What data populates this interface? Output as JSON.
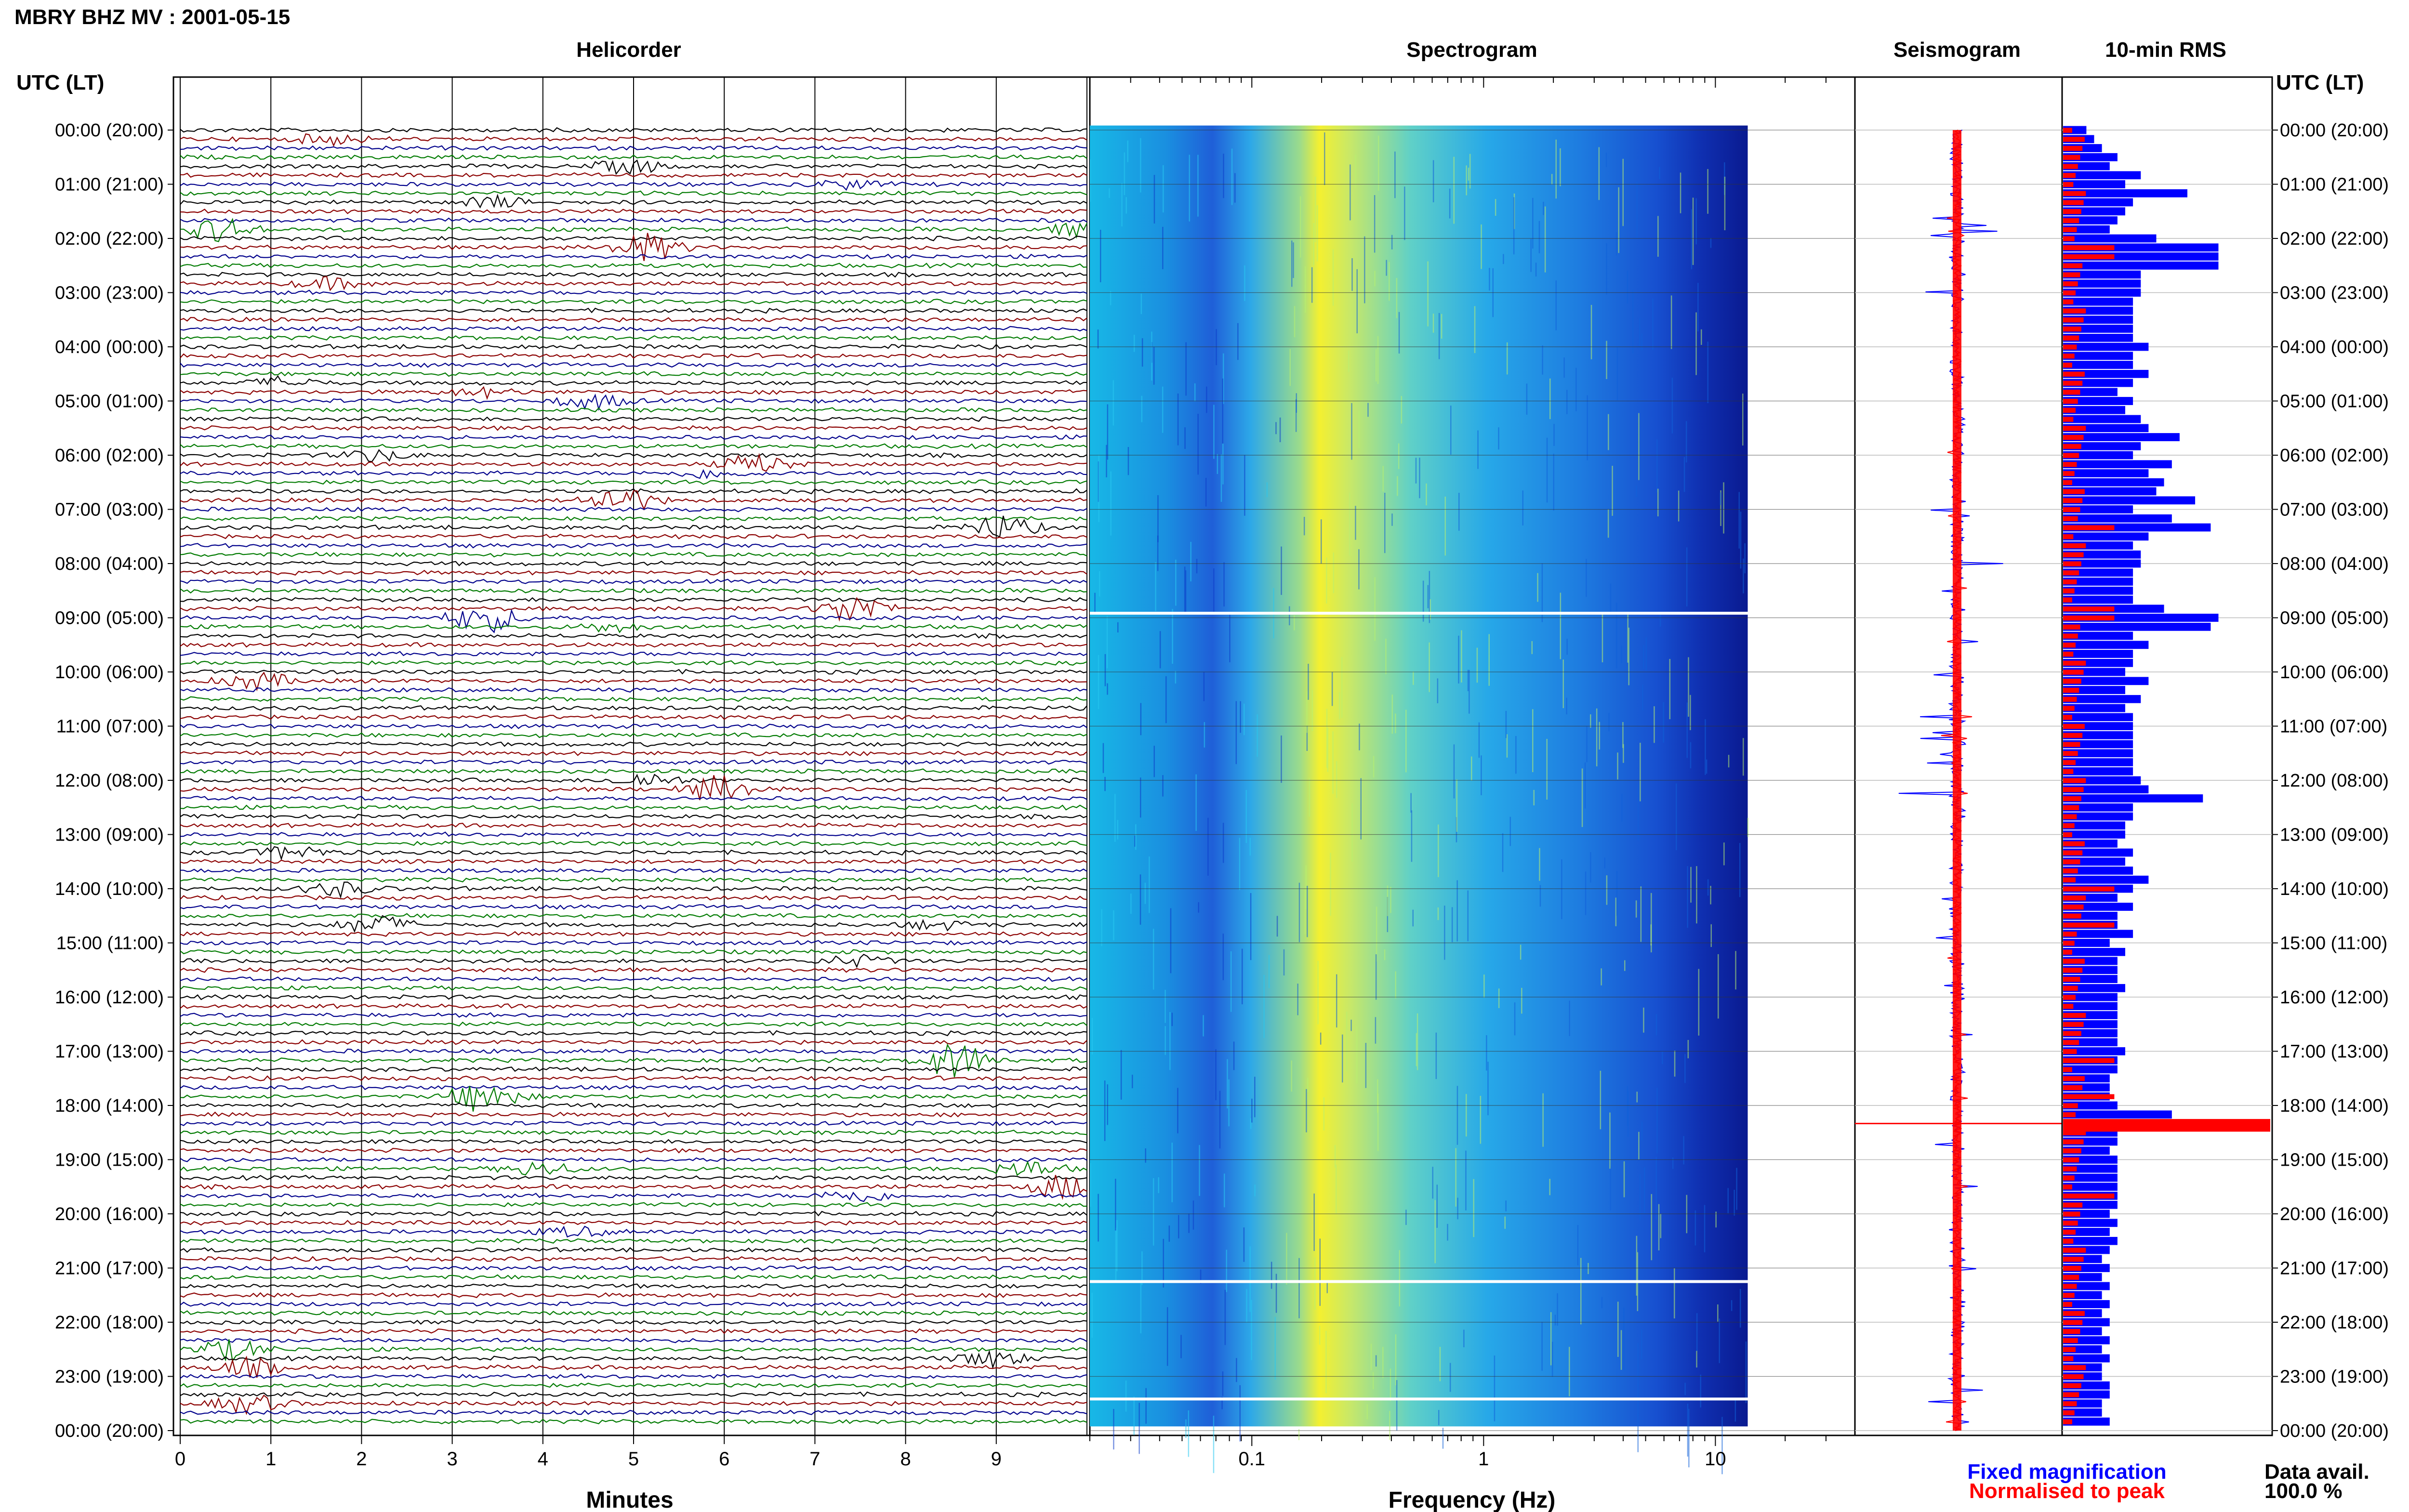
{
  "header": {
    "title": "MBRY BHZ MV : 2001-05-15",
    "utc_label_left": "UTC (LT)",
    "utc_label_right": "UTC (LT)"
  },
  "panels": {
    "helicorder": "Helicorder",
    "spectrogram": "Spectrogram",
    "seismogram": "Seismogram",
    "rms": "10-min RMS"
  },
  "colors": {
    "trace_cycle": [
      "#000000",
      "#8b0000",
      "#00008b",
      "#007a00"
    ],
    "fixed": "#0000ff",
    "normalised": "#ff0000"
  },
  "chart_data": {
    "type": "heatmap",
    "time_labels": [
      "00:00 (20:00)",
      "01:00 (21:00)",
      "02:00 (22:00)",
      "03:00 (23:00)",
      "04:00 (00:00)",
      "05:00 (01:00)",
      "06:00 (02:00)",
      "07:00 (03:00)",
      "08:00 (04:00)",
      "09:00 (05:00)",
      "10:00 (06:00)",
      "11:00 (07:00)",
      "12:00 (08:00)",
      "13:00 (09:00)",
      "14:00 (10:00)",
      "15:00 (11:00)",
      "16:00 (12:00)",
      "17:00 (13:00)",
      "18:00 (14:00)",
      "19:00 (15:00)",
      "20:00 (16:00)",
      "21:00 (17:00)",
      "22:00 (18:00)",
      "23:00 (19:00)",
      "00:00 (20:00)"
    ],
    "helicorder": {
      "xlabel": "Minutes",
      "xticks": [
        "0",
        "1",
        "2",
        "3",
        "4",
        "5",
        "6",
        "7",
        "8",
        "9"
      ],
      "xlim": [
        0,
        10
      ],
      "rows": 144,
      "events": [
        {
          "row": 1,
          "minute": 1.5,
          "amp": 1.2
        },
        {
          "row": 4,
          "minute": 4.8,
          "amp": 1.5
        },
        {
          "row": 6,
          "minute": 7.2,
          "amp": 1.0
        },
        {
          "row": 8,
          "minute": 3.3,
          "amp": 1.3
        },
        {
          "row": 11,
          "minute": 0.3,
          "amp": 2.5
        },
        {
          "row": 11,
          "minute": 9.8,
          "amp": 1.5
        },
        {
          "row": 13,
          "minute": 5.0,
          "amp": 3.0
        },
        {
          "row": 17,
          "minute": 1.5,
          "amp": 1.2
        },
        {
          "row": 28,
          "minute": 1.0,
          "amp": 1.2
        },
        {
          "row": 29,
          "minute": 3.2,
          "amp": 1.0
        },
        {
          "row": 30,
          "minute": 4.4,
          "amp": 1.6
        },
        {
          "row": 36,
          "minute": 2.0,
          "amp": 1.3
        },
        {
          "row": 37,
          "minute": 6.2,
          "amp": 2.0
        },
        {
          "row": 38,
          "minute": 5.7,
          "amp": 1.0
        },
        {
          "row": 41,
          "minute": 4.7,
          "amp": 3.0
        },
        {
          "row": 44,
          "minute": 8.9,
          "amp": 2.6
        },
        {
          "row": 53,
          "minute": 7.3,
          "amp": 3.2
        },
        {
          "row": 54,
          "minute": 3.2,
          "amp": 3.2
        },
        {
          "row": 55,
          "minute": 4.6,
          "amp": 1.0
        },
        {
          "row": 61,
          "minute": 0.7,
          "amp": 1.8
        },
        {
          "row": 72,
          "minute": 5.0,
          "amp": 1.5
        },
        {
          "row": 73,
          "minute": 5.8,
          "amp": 3.0
        },
        {
          "row": 80,
          "minute": 1.1,
          "amp": 1.5
        },
        {
          "row": 84,
          "minute": 1.6,
          "amp": 1.5
        },
        {
          "row": 88,
          "minute": 2.0,
          "amp": 2.0
        },
        {
          "row": 88,
          "minute": 8.2,
          "amp": 1.0
        },
        {
          "row": 92,
          "minute": 7.3,
          "amp": 1.2
        },
        {
          "row": 103,
          "minute": 8.4,
          "amp": 4.0
        },
        {
          "row": 107,
          "minute": 3.2,
          "amp": 3.5
        },
        {
          "row": 115,
          "minute": 3.8,
          "amp": 1.5
        },
        {
          "row": 115,
          "minute": 9.2,
          "amp": 1.7
        },
        {
          "row": 117,
          "minute": 9.6,
          "amp": 2.6
        },
        {
          "row": 118,
          "minute": 7.3,
          "amp": 1.4
        },
        {
          "row": 122,
          "minute": 4.2,
          "amp": 1.0
        },
        {
          "row": 135,
          "minute": 0.4,
          "amp": 2.2
        },
        {
          "row": 137,
          "minute": 0.6,
          "amp": 2.0
        },
        {
          "row": 136,
          "minute": 8.8,
          "amp": 1.8
        },
        {
          "row": 141,
          "minute": 0.6,
          "amp": 2.0
        }
      ]
    },
    "spectrogram": {
      "xlabel": "Frequency (Hz)",
      "xscale": "log",
      "xlim": [
        0.02,
        40
      ],
      "xticks": [
        "0.1",
        "1",
        "10"
      ],
      "colormap": "jet"
    },
    "seismogram": {
      "legend_fixed": "Fixed magnification",
      "legend_normalised": "Normalised to peak"
    },
    "rms": {
      "data_avail_label": "Data avail.",
      "data_avail_value": "100.0 %",
      "fixed": [
        0.15,
        0.2,
        0.25,
        0.35,
        0.3,
        0.5,
        0.4,
        0.8,
        0.45,
        0.4,
        0.35,
        0.3,
        0.6,
        1.1,
        1.0,
        1.2,
        0.5,
        0.5,
        0.5,
        0.45,
        0.45,
        0.45,
        0.45,
        0.45,
        0.55,
        0.45,
        0.45,
        0.55,
        0.45,
        0.35,
        0.45,
        0.4,
        0.5,
        0.55,
        0.75,
        0.5,
        0.45,
        0.7,
        0.55,
        0.65,
        0.6,
        0.85,
        0.45,
        0.7,
        0.95,
        0.55,
        0.45,
        0.5,
        0.5,
        0.45,
        0.45,
        0.45,
        0.45,
        0.65,
        1.0,
        0.95,
        0.45,
        0.55,
        0.45,
        0.45,
        0.4,
        0.55,
        0.4,
        0.5,
        0.4,
        0.45,
        0.45,
        0.45,
        0.45,
        0.45,
        0.45,
        0.45,
        0.5,
        0.55,
        0.9,
        0.45,
        0.45,
        0.4,
        0.4,
        0.35,
        0.45,
        0.4,
        0.45,
        0.55,
        0.45,
        0.35,
        0.45,
        0.35,
        0.35,
        0.45,
        0.3,
        0.4,
        0.35,
        0.35,
        0.35,
        0.4,
        0.35,
        0.35,
        0.35,
        0.35,
        0.35,
        0.35,
        0.4,
        0.35,
        0.35,
        0.3,
        0.3,
        0.3,
        0.35,
        0.7,
        0.4,
        0.35,
        0.35,
        0.3,
        0.35,
        0.35,
        0.35,
        0.35,
        0.35,
        0.35,
        0.3,
        0.35,
        0.3,
        0.35,
        0.3,
        0.25,
        0.3,
        0.25,
        0.3,
        0.25,
        0.3,
        0.25,
        0.3,
        0.25,
        0.3,
        0.25,
        0.3,
        0.25,
        0.25,
        0.3,
        0.3,
        0.25,
        0.25,
        0.3
      ],
      "peak_rows": [
        13,
        14,
        44,
        53,
        54,
        84,
        88,
        103,
        107,
        118
      ]
    }
  }
}
